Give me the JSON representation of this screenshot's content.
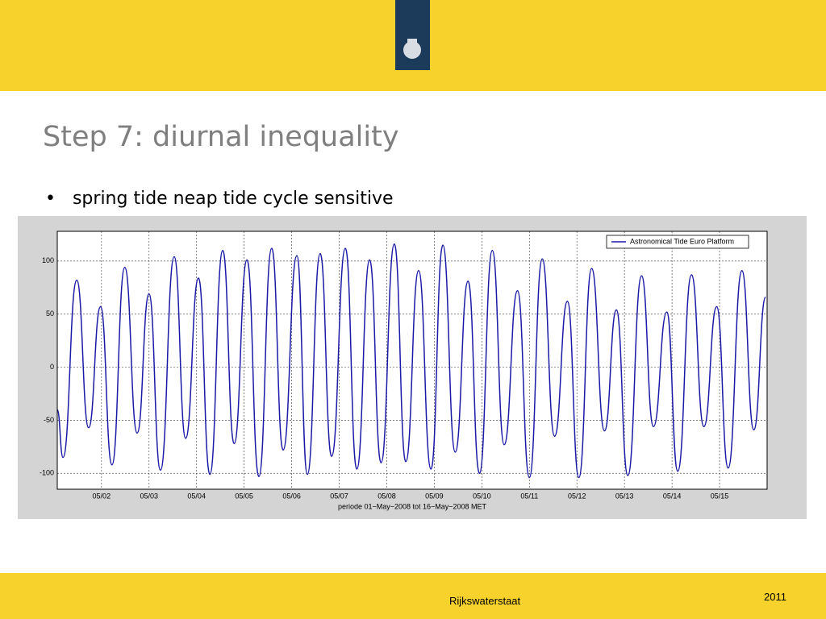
{
  "slide": {
    "title": "Step 7: diurnal inequality",
    "bullet": "spring tide neap tide cycle sensitive",
    "footer": "Rijkswaterstaat",
    "year": "2011"
  },
  "chart_data": {
    "type": "line",
    "xlabel": "periode 01−May−2008 tot 16−May−2008 MET",
    "x": [
      0.07,
      0.19,
      0.48,
      0.73,
      0.98,
      1.22,
      1.49,
      1.75,
      2.0,
      2.24,
      2.53,
      2.77,
      3.04,
      3.28,
      3.55,
      3.79,
      4.06,
      4.31,
      4.58,
      4.82,
      5.11,
      5.33,
      5.6,
      5.84,
      6.13,
      6.37,
      6.64,
      6.88,
      7.16,
      7.4,
      7.67,
      7.93,
      8.18,
      8.44,
      8.71,
      8.95,
      9.22,
      9.47,
      9.75,
      10.0,
      10.27,
      10.53,
      10.8,
      11.04,
      11.31,
      11.58,
      11.83,
      12.07,
      12.36,
      12.61,
      12.89,
      13.12,
      13.41,
      13.67,
      13.94,
      14.18,
      14.47,
      14.72,
      14.97
    ],
    "series": [
      {
        "name": "Astronomical Tide Euro Platform",
        "color": "#1a1aa6",
        "values": [
          -40,
          -85,
          82,
          -57,
          57,
          -92,
          94,
          -62,
          69,
          -97,
          104,
          -67,
          84,
          -101,
          110,
          -72,
          101,
          -103,
          112,
          -78,
          105,
          -101,
          107,
          -84,
          112,
          -96,
          101,
          -90,
          116,
          -89,
          91,
          -96,
          115,
          -80,
          81,
          -100,
          110,
          -73,
          72,
          -104,
          102,
          -65,
          62,
          -104,
          93,
          -60,
          54,
          -102,
          86,
          -56,
          52,
          -98,
          87,
          -56,
          57,
          -95,
          91,
          -59,
          66
        ]
      }
    ],
    "xlim": [
      0.07,
      15.0
    ],
    "xticks": [
      {
        "value": 1,
        "label": "05/02"
      },
      {
        "value": 2,
        "label": "05/03"
      },
      {
        "value": 3,
        "label": "05/04"
      },
      {
        "value": 4,
        "label": "05/05"
      },
      {
        "value": 5,
        "label": "05/06"
      },
      {
        "value": 6,
        "label": "05/07"
      },
      {
        "value": 7,
        "label": "05/08"
      },
      {
        "value": 8,
        "label": "05/09"
      },
      {
        "value": 9,
        "label": "05/10"
      },
      {
        "value": 10,
        "label": "05/11"
      },
      {
        "value": 11,
        "label": "05/12"
      },
      {
        "value": 12,
        "label": "05/13"
      },
      {
        "value": 13,
        "label": "05/14"
      },
      {
        "value": 14,
        "label": "05/15"
      }
    ],
    "ylim": [
      -115,
      128
    ],
    "yticks": [
      -100,
      -50,
      0,
      50,
      100
    ],
    "grid": true,
    "legend": "upper right"
  }
}
